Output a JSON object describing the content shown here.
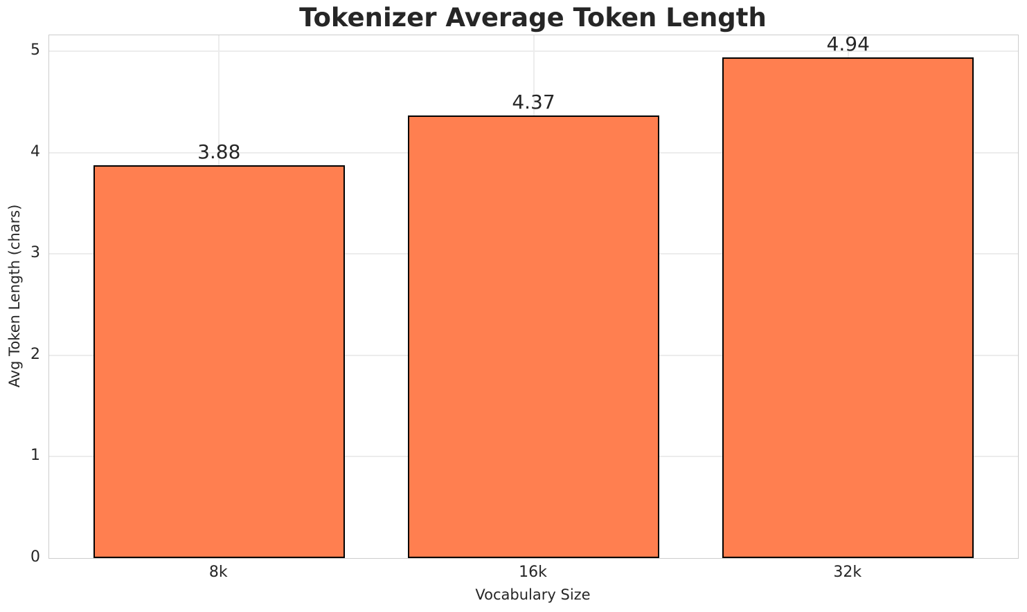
{
  "figure": {
    "background": "#ffffff"
  },
  "chart_data": {
    "type": "bar",
    "title": "Tokenizer Average Token Length",
    "xlabel": "Vocabulary Size",
    "ylabel": "Avg Token Length (chars)",
    "categories": [
      "8k",
      "16k",
      "32k"
    ],
    "values": [
      3.88,
      4.37,
      4.94
    ],
    "value_labels": [
      "3.88",
      "4.37",
      "4.94"
    ],
    "yticks": [
      0,
      1,
      2,
      3,
      4,
      5
    ],
    "ytick_labels": [
      "0",
      "1",
      "2",
      "3",
      "4",
      "5"
    ],
    "ylim": [
      0,
      5.16
    ],
    "xlim": [
      -0.54,
      2.54
    ],
    "bar_width": 0.8,
    "grid": true,
    "legend": false,
    "colors": {
      "bar_fill": "#ff7f50",
      "bar_edge": "#000000",
      "grid": "#ececec",
      "spine": "#cccccc",
      "text": "#262626"
    }
  }
}
